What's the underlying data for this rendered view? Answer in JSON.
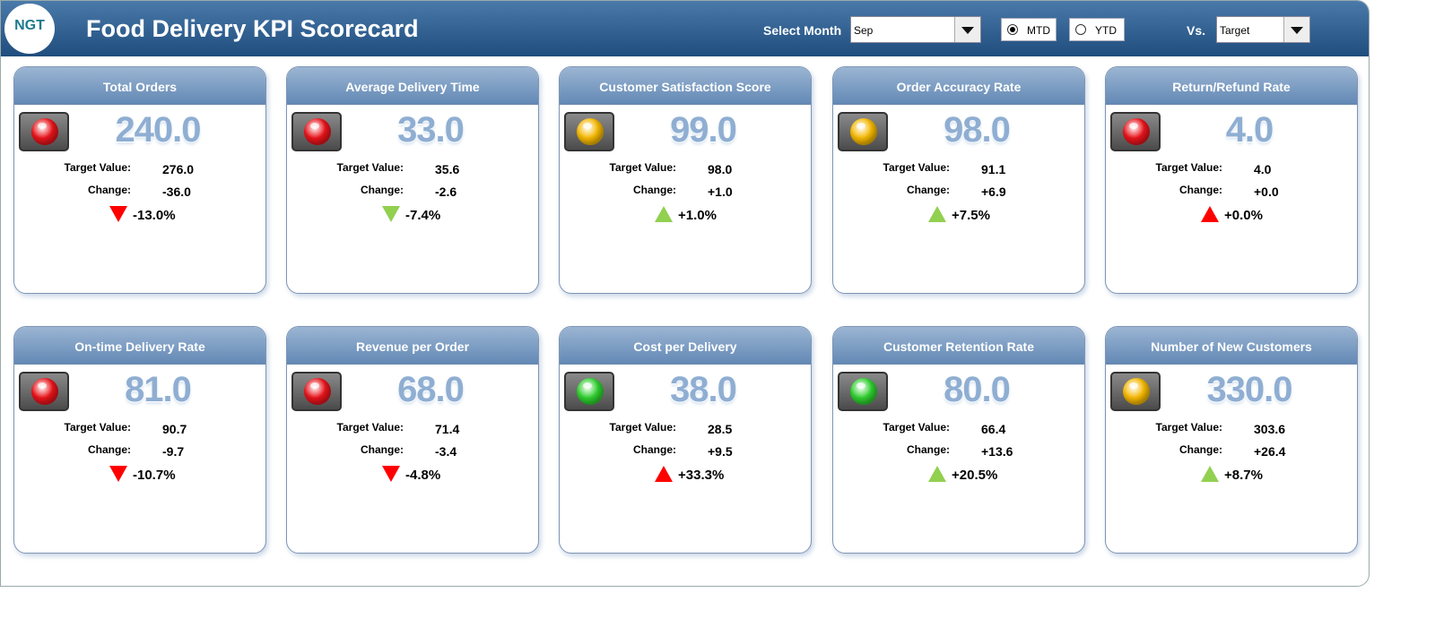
{
  "header": {
    "logo": "NGT",
    "title": "Food Delivery KPI Scorecard",
    "select_month_label": "Select Month",
    "month": "Sep",
    "mtd_label": "MTD",
    "ytd_label": "YTD",
    "vs_label": "Vs.",
    "vs_value": "Target"
  },
  "cards": [
    {
      "title": "Total Orders",
      "value": "240.0",
      "target_label": "Target Value:",
      "target": "276.0",
      "change_label": "Change:",
      "change": "-36.0",
      "change_pct": "-13.0%",
      "light_color": "#e8141b",
      "arrow": "down",
      "arrow_color": "#ff0000"
    },
    {
      "title": "Average Delivery Time",
      "value": "33.0",
      "target_label": "Target Value:",
      "target": "35.6",
      "change_label": "Change:",
      "change": "-2.6",
      "change_pct": "-7.4%",
      "light_color": "#e8141b",
      "arrow": "down",
      "arrow_color": "#92d050"
    },
    {
      "title": "Customer Satisfaction Score",
      "value": "99.0",
      "target_label": "Target Value:",
      "target": "98.0",
      "change_label": "Change:",
      "change": "+1.0",
      "change_pct": "+1.0%",
      "light_color": "#f5b800",
      "arrow": "up",
      "arrow_color": "#92d050"
    },
    {
      "title": "Order Accuracy Rate",
      "value": "98.0",
      "target_label": "Target Value:",
      "target": "91.1",
      "change_label": "Change:",
      "change": "+6.9",
      "change_pct": "+7.5%",
      "light_color": "#f5b800",
      "arrow": "up",
      "arrow_color": "#92d050"
    },
    {
      "title": "Return/Refund Rate",
      "value": "4.0",
      "target_label": "Target Value:",
      "target": "4.0",
      "change_label": "Change:",
      "change": "+0.0",
      "change_pct": "+0.0%",
      "light_color": "#e8141b",
      "arrow": "up",
      "arrow_color": "#ff0000"
    },
    {
      "title": "On-time Delivery Rate",
      "value": "81.0",
      "target_label": "Target Value:",
      "target": "90.7",
      "change_label": "Change:",
      "change": "-9.7",
      "change_pct": "-10.7%",
      "light_color": "#e8141b",
      "arrow": "down",
      "arrow_color": "#ff0000"
    },
    {
      "title": "Revenue per Order",
      "value": "68.0",
      "target_label": "Target Value:",
      "target": "71.4",
      "change_label": "Change:",
      "change": "-3.4",
      "change_pct": "-4.8%",
      "light_color": "#e8141b",
      "arrow": "down",
      "arrow_color": "#ff0000"
    },
    {
      "title": "Cost per Delivery",
      "value": "38.0",
      "target_label": "Target Value:",
      "target": "28.5",
      "change_label": "Change:",
      "change": "+9.5",
      "change_pct": "+33.3%",
      "light_color": "#2fcf2f",
      "arrow": "up",
      "arrow_color": "#ff0000"
    },
    {
      "title": "Customer Retention Rate",
      "value": "80.0",
      "target_label": "Target Value:",
      "target": "66.4",
      "change_label": "Change:",
      "change": "+13.6",
      "change_pct": "+20.5%",
      "light_color": "#2fcf2f",
      "arrow": "up",
      "arrow_color": "#92d050"
    },
    {
      "title": "Number of New Customers",
      "value": "330.0",
      "target_label": "Target Value:",
      "target": "303.6",
      "change_label": "Change:",
      "change": "+26.4",
      "change_pct": "+8.7%",
      "light_color": "#f5b800",
      "arrow": "up",
      "arrow_color": "#92d050"
    }
  ]
}
